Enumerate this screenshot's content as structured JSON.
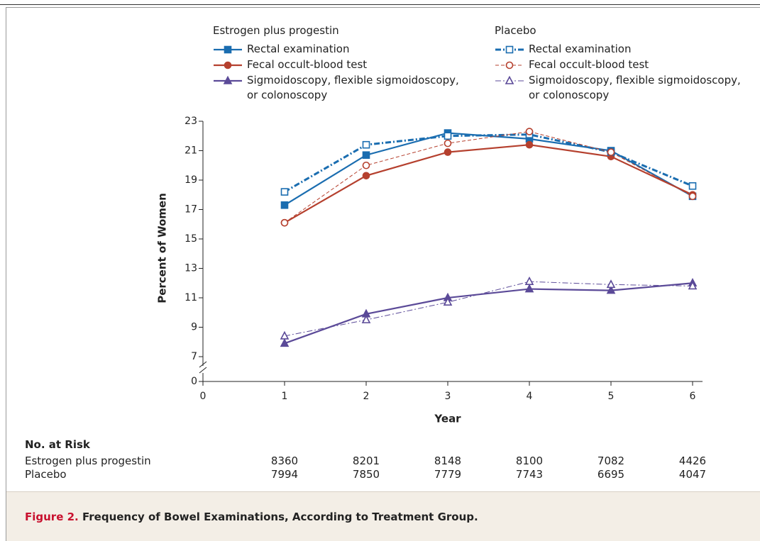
{
  "chart_data": {
    "type": "line",
    "x_label": "Year",
    "y_label": "Percent of Women",
    "xlim": [
      0,
      6
    ],
    "xticks": [
      0,
      1,
      2,
      3,
      4,
      5,
      6
    ],
    "ylim": [
      7,
      23
    ],
    "yticks": [
      0,
      7,
      9,
      11,
      13,
      15,
      17,
      19,
      21,
      23
    ],
    "axis_break": true,
    "x": [
      1,
      2,
      3,
      4,
      5,
      6
    ],
    "groups": [
      {
        "name": "Estrogen plus progestin",
        "series": [
          {
            "name": "Rectal examination",
            "color": "#1a6db0",
            "marker": "square",
            "filled": true,
            "line_style": "solid",
            "width": 2.2,
            "values": [
              17.3,
              20.7,
              22.2,
              21.8,
              21.0,
              17.9
            ]
          },
          {
            "name": "Fecal occult-blood test",
            "color": "#b5402e",
            "marker": "circle",
            "filled": true,
            "line_style": "solid",
            "width": 2.2,
            "values": [
              16.1,
              19.3,
              20.9,
              21.4,
              20.6,
              18.0
            ]
          },
          {
            "name": "Sigmoidoscopy, flexible sigmoidoscopy, or colonoscopy",
            "color": "#5b4a98",
            "marker": "triangle",
            "filled": true,
            "line_style": "solid",
            "width": 2.2,
            "values": [
              7.9,
              9.9,
              11.0,
              11.6,
              11.5,
              12.0
            ]
          }
        ]
      },
      {
        "name": "Placebo",
        "series": [
          {
            "name": "Rectal examination",
            "color": "#1a6db0",
            "marker": "square",
            "filled": false,
            "line_style": "dashdot",
            "width": 3,
            "values": [
              18.2,
              21.4,
              22.0,
              22.1,
              20.9,
              18.6
            ]
          },
          {
            "name": "Fecal occult-blood test",
            "color": "#b5402e",
            "marker": "circle",
            "filled": false,
            "line_style": "dashed",
            "width": 1,
            "values": [
              16.1,
              20.0,
              21.5,
              22.3,
              20.9,
              17.9
            ]
          },
          {
            "name": "Sigmoidoscopy, flexible sigmoidoscopy, or colonoscopy",
            "color": "#5b4a98",
            "marker": "triangle",
            "filled": false,
            "line_style": "dashdot",
            "width": 1,
            "values": [
              8.4,
              9.5,
              10.7,
              12.1,
              11.9,
              11.8
            ]
          }
        ]
      }
    ],
    "risk_table": {
      "title": "No. at Risk",
      "rows": [
        {
          "label": "Estrogen plus progestin",
          "values": [
            "8360",
            "8201",
            "8148",
            "8100",
            "7082",
            "4426"
          ]
        },
        {
          "label": "Placebo",
          "values": [
            "7994",
            "7850",
            "7779",
            "7743",
            "6695",
            "4047"
          ]
        }
      ]
    }
  },
  "caption": {
    "label": "Figure 2.",
    "text": "Frequency of Bowel Examinations, According to Treatment Group."
  }
}
